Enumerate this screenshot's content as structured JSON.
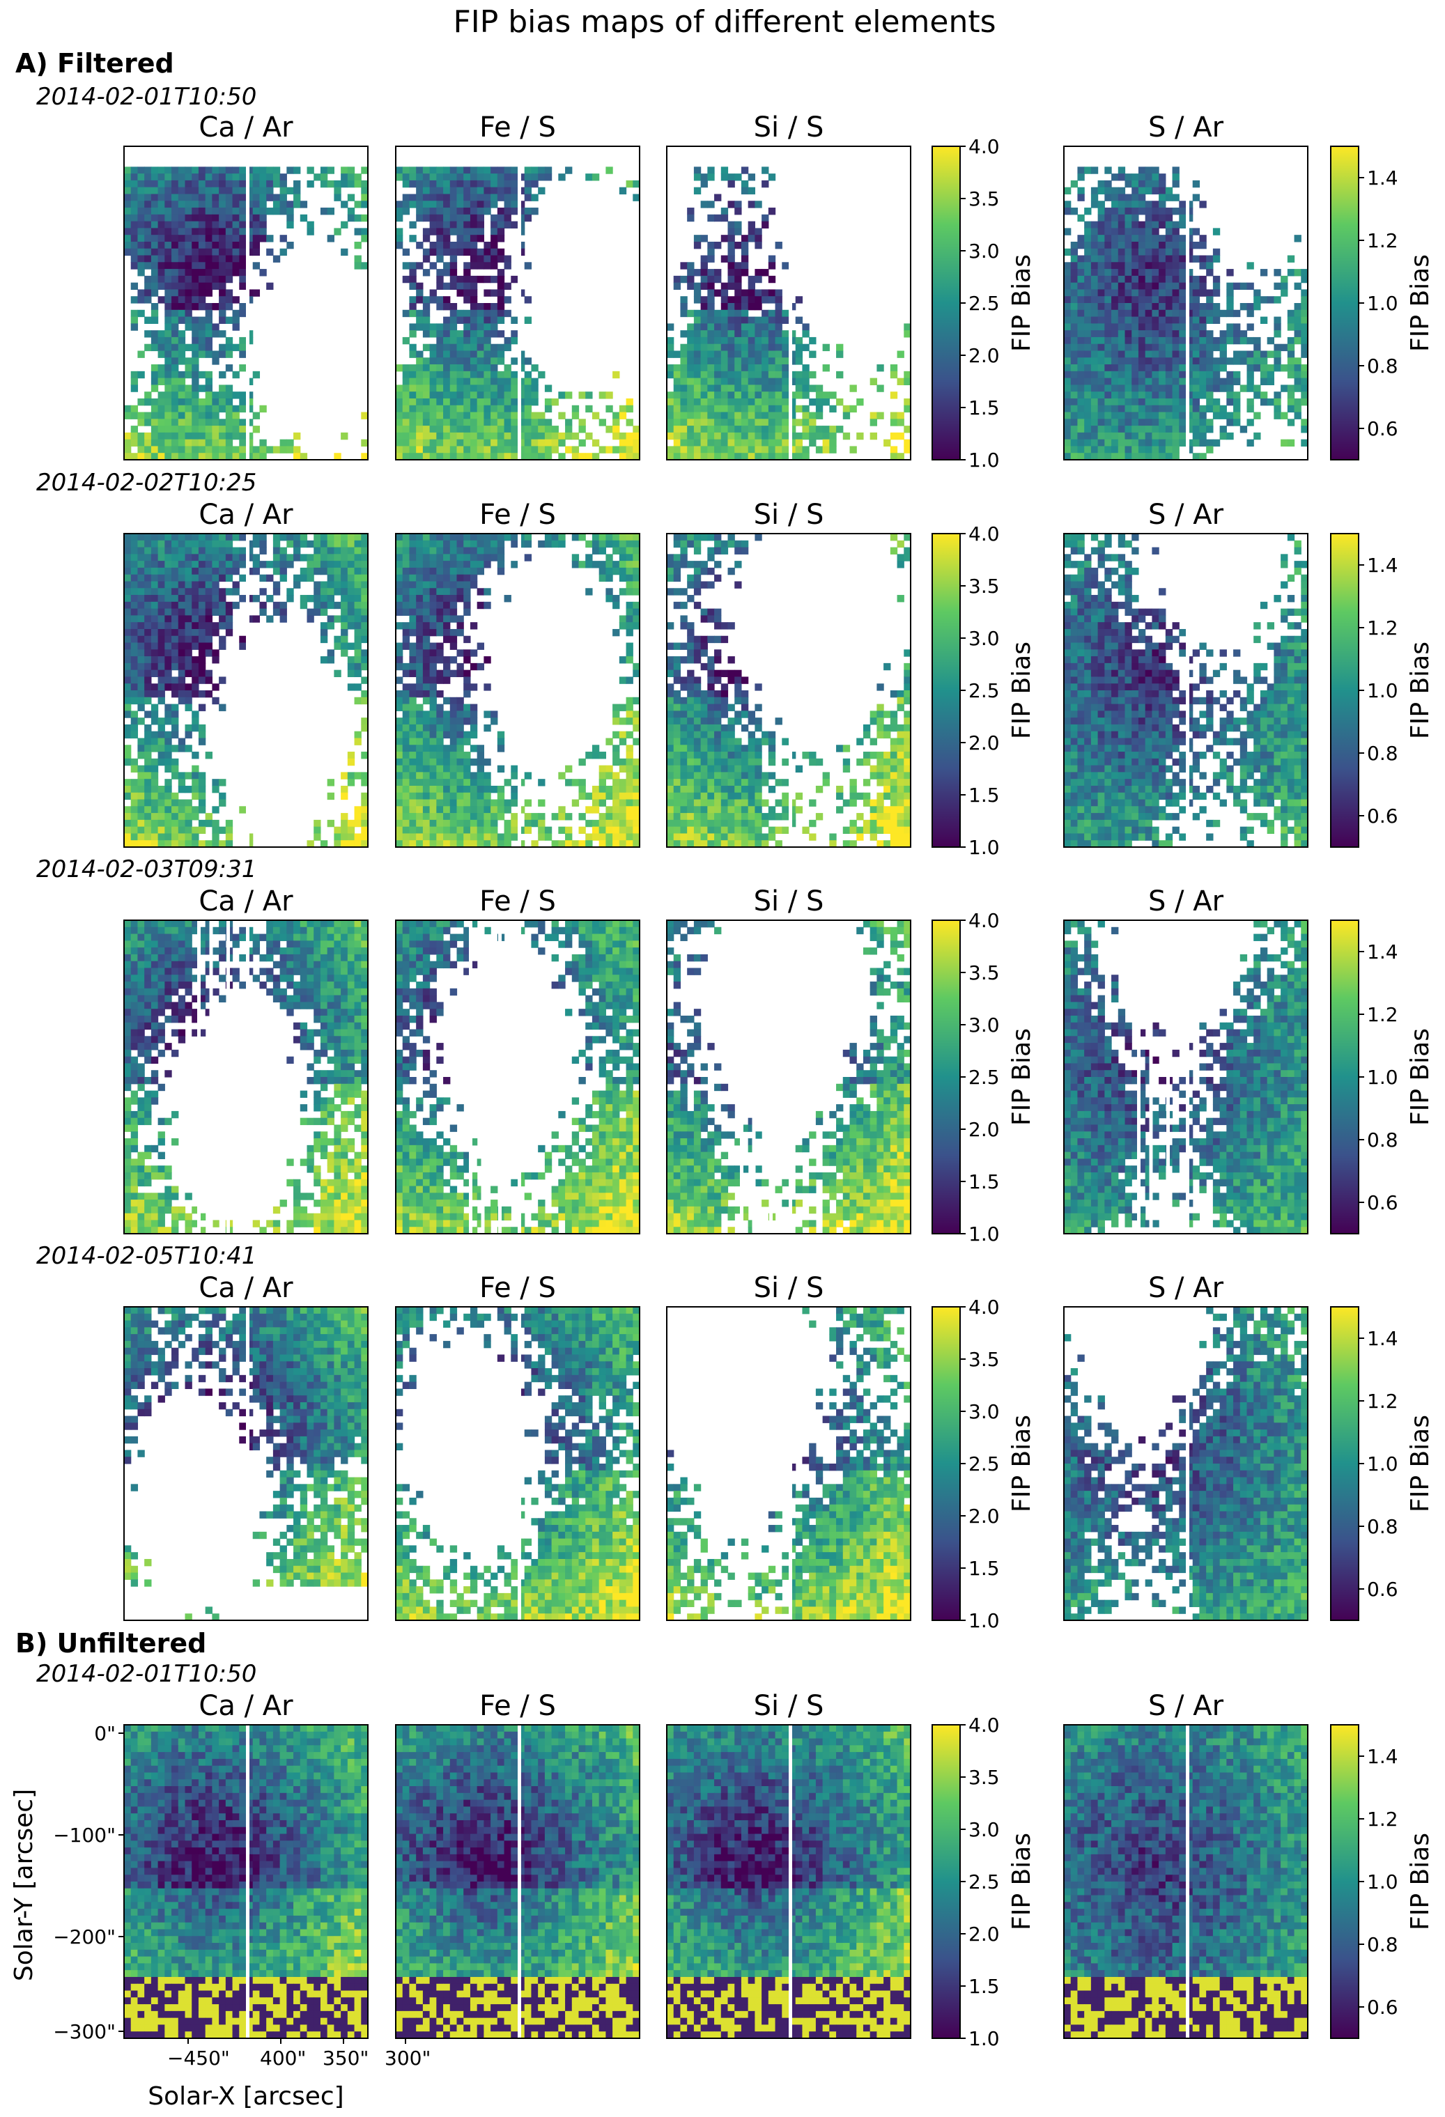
{
  "title": "FIP bias maps of different elements",
  "sections": [
    {
      "label": "A) Filtered",
      "rows": [
        {
          "date": "2014-02-01T10:50"
        },
        {
          "date": "2014-02-02T10:25"
        },
        {
          "date": "2014-02-03T09:31"
        },
        {
          "date": "2014-02-05T10:41"
        }
      ]
    },
    {
      "label": "B) Unfiltered",
      "rows": [
        {
          "date": "2014-02-01T10:50"
        }
      ]
    }
  ],
  "panels": [
    "Ca / Ar",
    "Fe / S",
    "Si / S",
    "S / Ar"
  ],
  "colorbars": {
    "label": "FIP Bias",
    "left": {
      "min": 1.0,
      "max": 4.0,
      "ticks": [
        "1.0",
        "1.5",
        "2.0",
        "2.5",
        "3.0",
        "3.5",
        "4.0"
      ]
    },
    "right": {
      "min": 0.5,
      "max": 1.5,
      "ticks": [
        "0.6",
        "0.8",
        "1.0",
        "1.2",
        "1.4"
      ]
    }
  },
  "axes": {
    "xlabel": "Solar-X [arcsec]",
    "ylabel": "Solar-Y [arcsec]",
    "xticks": [
      "−450\"",
      "400\"",
      "350\"",
      "300\""
    ],
    "yticks": [
      "0\"",
      "−100\"",
      "−200\"",
      "−300\""
    ]
  },
  "colormap": {
    "name": "viridis",
    "stops": [
      "#440154",
      "#3b528b",
      "#21918c",
      "#5ec962",
      "#fde725"
    ]
  },
  "chart_data": {
    "type": "heatmap",
    "title": "FIP bias maps of different elements",
    "groups": [
      "A) Filtered",
      "B) Unfiltered"
    ],
    "observations": [
      "2014-02-01T10:50",
      "2014-02-02T10:25",
      "2014-02-03T09:31",
      "2014-02-05T10:41",
      "2014-02-01T10:50"
    ],
    "ratios": [
      "Ca / Ar",
      "Fe / S",
      "Si / S",
      "S / Ar"
    ],
    "colorbar_label": "FIP Bias",
    "colorbar_ranges": {
      "Ca / Ar": [
        1.0,
        4.0
      ],
      "Fe / S": [
        1.0,
        4.0
      ],
      "Si / S": [
        1.0,
        4.0
      ],
      "S / Ar": [
        0.5,
        1.5
      ]
    },
    "colormap": "viridis",
    "xlabel": "Solar-X [arcsec]",
    "ylabel": "Solar-Y [arcsec]",
    "xticks": [
      -450,
      400,
      350,
      300
    ],
    "yticks": [
      0,
      -100,
      -200,
      -300
    ]
  }
}
